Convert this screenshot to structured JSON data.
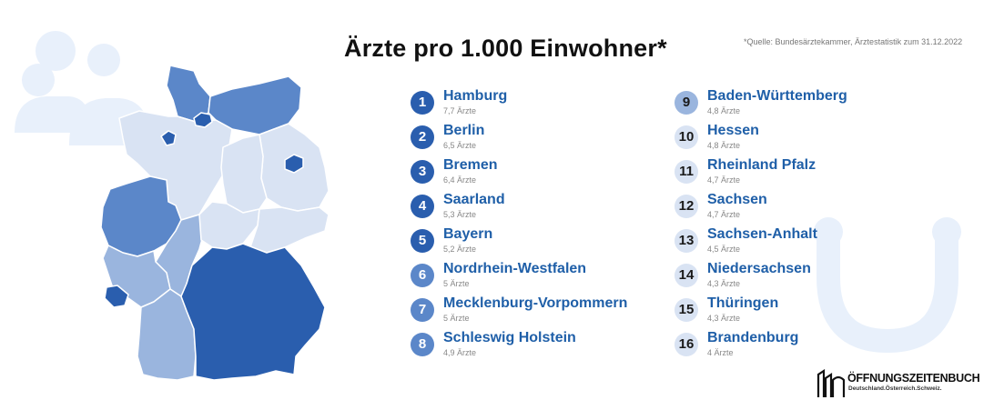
{
  "title": "Ärzte pro 1.000 Einwohner*",
  "source_note": "*Quelle: Bundesärztekammer, Ärztestatistik zum 31.12.2022",
  "logo": {
    "text": "ÖFFNUNGSZEITENBUCH",
    "sub": "Deutschland.Österreich.Schweiz."
  },
  "colors": {
    "dark": "#2a5eae",
    "mid": "#5b87c9",
    "light": "#9ab5de",
    "pale": "#d9e3f3",
    "name": "#1f5fa8",
    "deco": "#e8f0fb"
  },
  "chart_data": {
    "type": "table",
    "title": "Ärzte pro 1.000 Einwohner*",
    "unit": "Ärzte",
    "rows": [
      {
        "rank": "1",
        "name": "Hamburg",
        "value": 7.7,
        "label": "7,7 Ärzte"
      },
      {
        "rank": "2",
        "name": "Berlin",
        "value": 6.5,
        "label": "6,5 Ärzte"
      },
      {
        "rank": "3",
        "name": "Bremen",
        "value": 6.4,
        "label": "6,4 Ärzte"
      },
      {
        "rank": "4",
        "name": "Saarland",
        "value": 5.3,
        "label": "5,3 Ärzte"
      },
      {
        "rank": "5",
        "name": "Bayern",
        "value": 5.2,
        "label": "5,2 Ärzte"
      },
      {
        "rank": "6",
        "name": "Nordrhein-Westfalen",
        "value": 5,
        "label": "5 Ärzte"
      },
      {
        "rank": "7",
        "name": "Mecklenburg-Vorpommern",
        "value": 5,
        "label": "5 Ärzte"
      },
      {
        "rank": "8",
        "name": "Schleswig Holstein",
        "value": 4.9,
        "label": "4,9 Ärzte"
      },
      {
        "rank": "9",
        "name": "Baden-Württemberg",
        "value": 4.8,
        "label": "4,8 Ärzte"
      },
      {
        "rank": "10",
        "name": "Hessen",
        "value": 4.8,
        "label": "4,8 Ärzte"
      },
      {
        "rank": "11",
        "name": "Rheinland Pfalz",
        "value": 4.7,
        "label": "4,7 Ärzte"
      },
      {
        "rank": "12",
        "name": "Sachsen",
        "value": 4.7,
        "label": "4,7 Ärzte"
      },
      {
        "rank": "13",
        "name": "Sachsen-Anhalt",
        "value": 4.5,
        "label": "4,5 Ärzte"
      },
      {
        "rank": "14",
        "name": "Niedersachsen",
        "value": 4.3,
        "label": "4,3 Ärzte"
      },
      {
        "rank": "15",
        "name": "Thüringen",
        "value": 4.3,
        "label": "4,3 Ärzte"
      },
      {
        "rank": "16",
        "name": "Brandenburg",
        "value": 4,
        "label": "4 Ärzte"
      }
    ]
  }
}
